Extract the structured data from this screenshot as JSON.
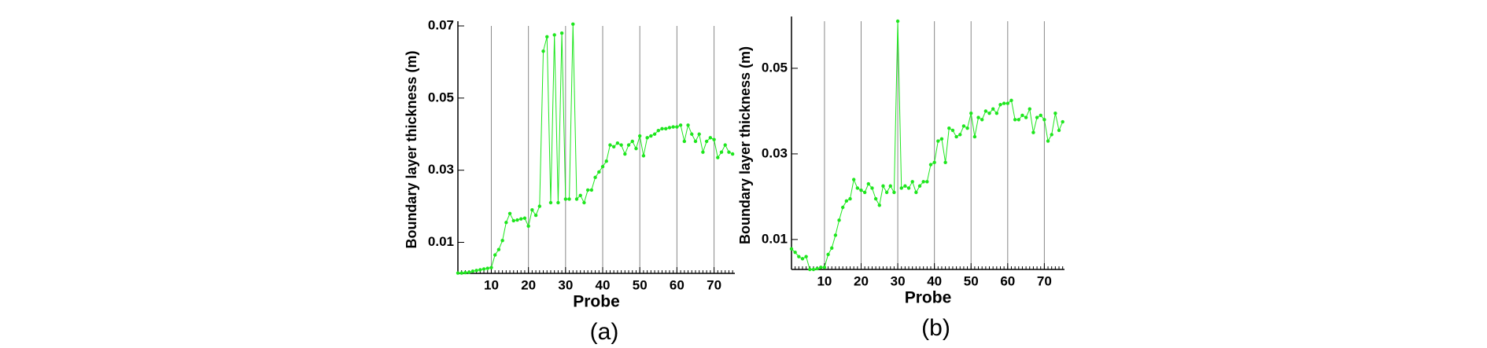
{
  "chart_data": [
    {
      "type": "line",
      "caption": "(a)",
      "xlabel": "Probe",
      "ylabel": "Boundary layer thickness (m)",
      "xlim": [
        1,
        75.6
      ],
      "ylim": [
        0.0014,
        0.07
      ],
      "xticks": [
        10,
        20,
        30,
        40,
        50,
        60,
        70
      ],
      "yticks": [
        0.01,
        0.03,
        0.05,
        0.07
      ],
      "grid": "x",
      "x": [
        1,
        2,
        3,
        4,
        5,
        6,
        7,
        8,
        9,
        10,
        11,
        12,
        13,
        14,
        15,
        16,
        17,
        18,
        19,
        20,
        21,
        22,
        23,
        24,
        25,
        26,
        27,
        28,
        29,
        30,
        31,
        32,
        33,
        34,
        35,
        36,
        37,
        38,
        39,
        40,
        41,
        42,
        43,
        44,
        45,
        46,
        47,
        48,
        49,
        50,
        51,
        52,
        53,
        54,
        55,
        56,
        57,
        58,
        59,
        60,
        61,
        62,
        63,
        64,
        65,
        66,
        67,
        68,
        69,
        70,
        71,
        72,
        73,
        74,
        75
      ],
      "series": [
        {
          "name": "(a)",
          "color": "#1ee61e",
          "values": [
            0.0015,
            0.0015,
            0.0016,
            0.0017,
            0.002,
            0.0022,
            0.0024,
            0.0026,
            0.0028,
            0.003,
            0.0065,
            0.008,
            0.0105,
            0.0155,
            0.018,
            0.016,
            0.0162,
            0.0165,
            0.0167,
            0.0145,
            0.019,
            0.0175,
            0.02,
            0.063,
            0.067,
            0.021,
            0.0675,
            0.021,
            0.068,
            0.022,
            0.022,
            0.0705,
            0.022,
            0.023,
            0.021,
            0.0245,
            0.0245,
            0.028,
            0.0295,
            0.031,
            0.0325,
            0.037,
            0.0365,
            0.0375,
            0.037,
            0.0345,
            0.037,
            0.038,
            0.036,
            0.0395,
            0.034,
            0.039,
            0.0395,
            0.04,
            0.041,
            0.0415,
            0.0415,
            0.0418,
            0.042,
            0.042,
            0.0425,
            0.038,
            0.0425,
            0.04,
            0.038,
            0.04,
            0.035,
            0.038,
            0.039,
            0.0385,
            0.0335,
            0.035,
            0.037,
            0.035,
            0.0345
          ]
        }
      ]
    },
    {
      "type": "line",
      "caption": "(b)",
      "xlabel": "Probe",
      "ylabel": "Boundary layer thickness (m)",
      "xlim": [
        1,
        75.5
      ],
      "ylim": [
        0.003,
        0.061
      ],
      "xticks": [
        10,
        20,
        30,
        40,
        50,
        60,
        70
      ],
      "yticks": [
        0.01,
        0.03,
        0.05
      ],
      "grid": "x",
      "x": [
        1,
        2,
        3,
        4,
        5,
        6,
        7,
        8,
        9,
        10,
        11,
        12,
        13,
        14,
        15,
        16,
        17,
        18,
        19,
        20,
        21,
        22,
        23,
        24,
        25,
        26,
        27,
        28,
        29,
        30,
        31,
        32,
        33,
        34,
        35,
        36,
        37,
        38,
        39,
        40,
        41,
        42,
        43,
        44,
        45,
        46,
        47,
        48,
        49,
        50,
        51,
        52,
        53,
        54,
        55,
        56,
        57,
        58,
        59,
        60,
        61,
        62,
        63,
        64,
        65,
        66,
        67,
        68,
        69,
        70,
        71,
        72,
        73,
        74,
        75
      ],
      "series": [
        {
          "name": "(b)",
          "color": "#1ee61e",
          "values": [
            0.0078,
            0.007,
            0.006,
            0.0055,
            0.006,
            0.003,
            0.003,
            0.0032,
            0.0035,
            0.0035,
            0.0065,
            0.008,
            0.011,
            0.0145,
            0.0175,
            0.019,
            0.0195,
            0.024,
            0.022,
            0.0215,
            0.021,
            0.023,
            0.022,
            0.0195,
            0.018,
            0.0225,
            0.021,
            0.0225,
            0.021,
            0.061,
            0.022,
            0.0225,
            0.022,
            0.0235,
            0.021,
            0.0225,
            0.0235,
            0.0235,
            0.0275,
            0.028,
            0.033,
            0.0335,
            0.028,
            0.036,
            0.0355,
            0.034,
            0.0345,
            0.0365,
            0.036,
            0.0395,
            0.034,
            0.0385,
            0.038,
            0.04,
            0.0395,
            0.0405,
            0.0395,
            0.0415,
            0.0418,
            0.0418,
            0.0425,
            0.038,
            0.038,
            0.039,
            0.0385,
            0.0405,
            0.035,
            0.0385,
            0.039,
            0.038,
            0.033,
            0.0345,
            0.0395,
            0.0355,
            0.0375
          ]
        }
      ]
    }
  ]
}
